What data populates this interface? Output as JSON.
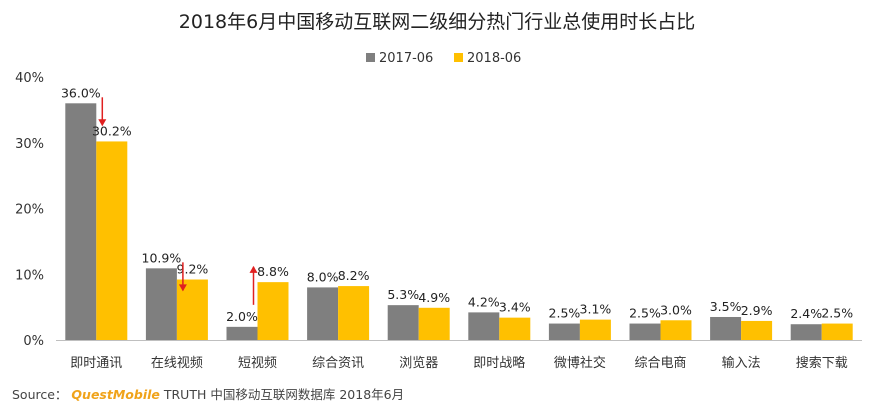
{
  "chart_data": {
    "type": "bar",
    "title": "2018年6月中国移动互联网二级细分热门行业总使用时长占比",
    "categories": [
      "即时通讯",
      "在线视频",
      "短视频",
      "综合资讯",
      "浏览器",
      "即时战略",
      "微博社交",
      "综合电商",
      "输入法",
      "搜索下载"
    ],
    "series": [
      {
        "name": "2017-06",
        "color": "#7f7f7f",
        "values": [
          36.0,
          10.9,
          2.0,
          8.0,
          5.3,
          4.2,
          2.5,
          2.5,
          3.5,
          2.4
        ],
        "labels": [
          "36.0%",
          "10.9%",
          "2.0%",
          "8.0%",
          "5.3%",
          "4.2%",
          "2.5%",
          "2.5%",
          "3.5%",
          "2.4%"
        ]
      },
      {
        "name": "2018-06",
        "color": "#ffc000",
        "values": [
          30.2,
          9.2,
          8.8,
          8.2,
          4.9,
          3.4,
          3.1,
          3.0,
          2.9,
          2.5
        ],
        "labels": [
          "30.2%",
          "9.2%",
          "8.8%",
          "8.2%",
          "4.9%",
          "3.4%",
          "3.1%",
          "3.0%",
          "2.9%",
          "2.5%"
        ]
      }
    ],
    "yticks": [
      "0%",
      "10%",
      "20%",
      "30%",
      "40%"
    ],
    "ylim": [
      0,
      40
    ],
    "grid": false,
    "legend_position": "top-center",
    "arrows": [
      {
        "category": "即时通讯",
        "direction": "down",
        "color": "#e02020"
      },
      {
        "category": "在线视频",
        "direction": "down",
        "color": "#e02020"
      },
      {
        "category": "短视频",
        "direction": "up",
        "color": "#e02020"
      }
    ]
  },
  "source": {
    "prefix": "Source：",
    "brand_quest": "QuestMobile",
    "brand_truth": "TRUTH",
    "text": "中国移动互联网数据库 2018年6月"
  }
}
